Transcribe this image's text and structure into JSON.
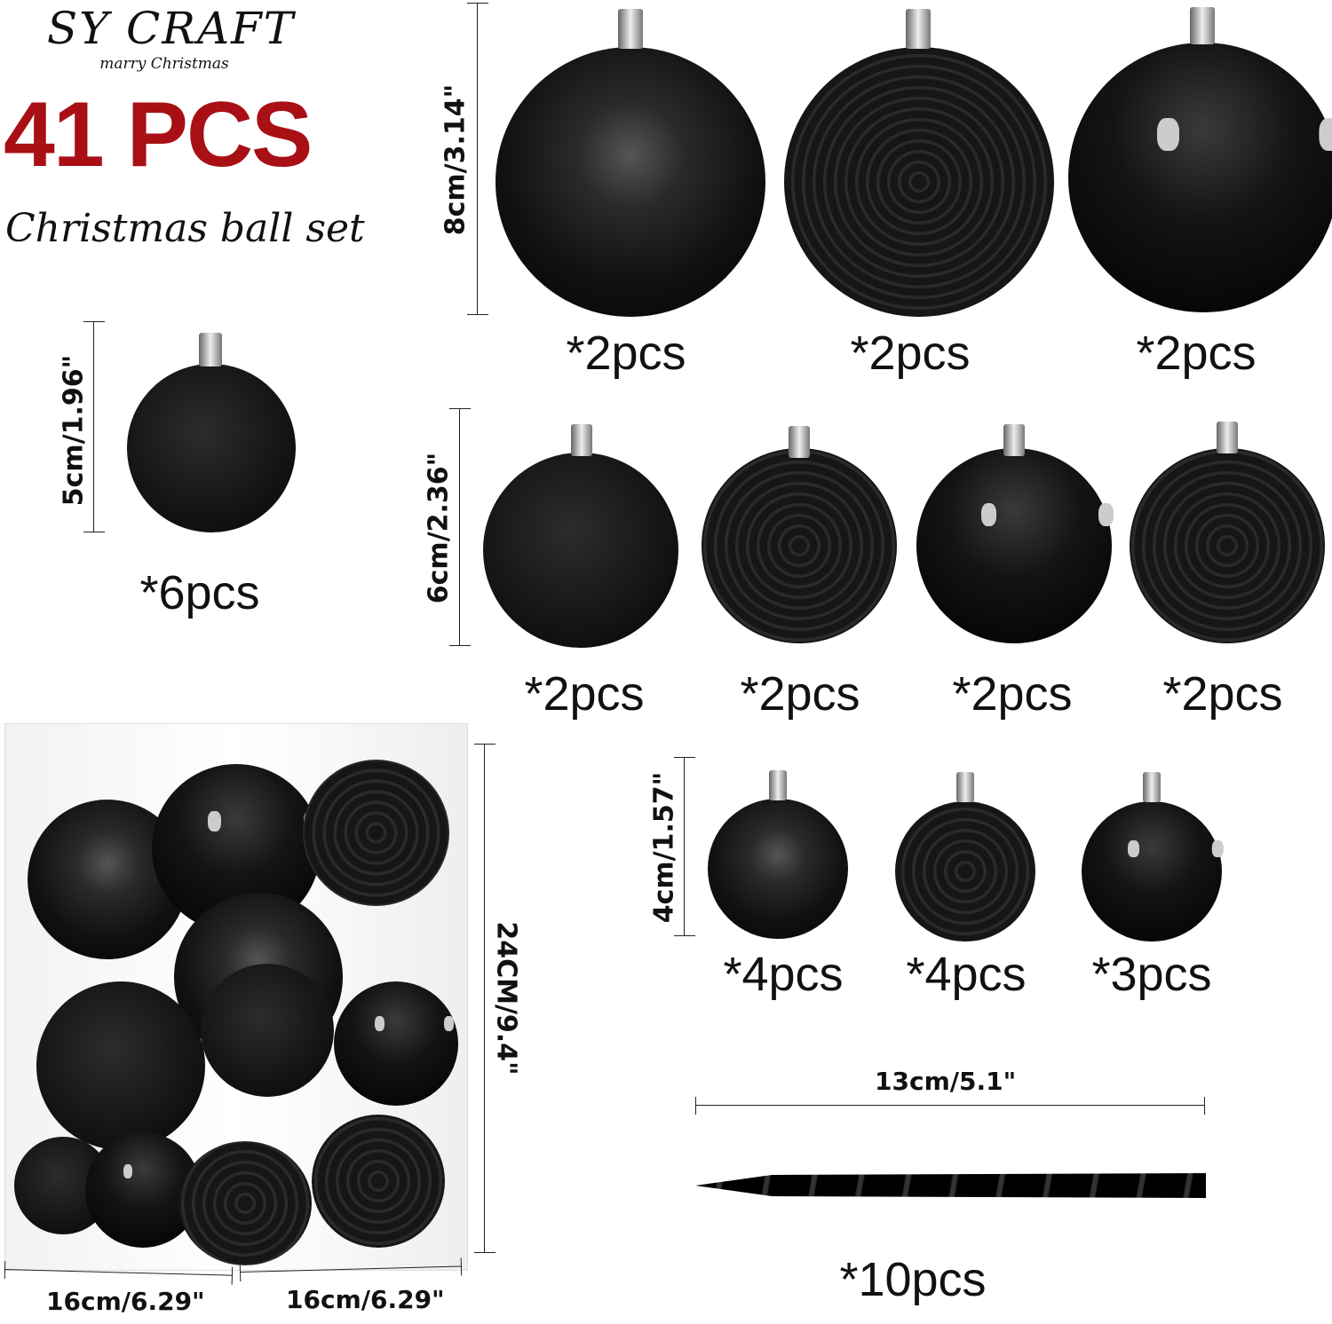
{
  "brand": {
    "name": "SY CRAFT",
    "tagline": "marry Christmas"
  },
  "headline": {
    "count": "41 PCS",
    "subtitle": "Christmas ball set"
  },
  "colors": {
    "accent": "#a81016",
    "ornament": "#0a0a0a"
  },
  "sizes": {
    "large": {
      "dimension": "8cm/3.14\"",
      "items": [
        {
          "finish": "glitter",
          "qty": "*2pcs"
        },
        {
          "finish": "embossed-sleigh",
          "qty": "*2pcs"
        },
        {
          "finish": "shiny",
          "qty": "*2pcs"
        }
      ]
    },
    "single": {
      "dimension": "5cm/1.96\"",
      "items": [
        {
          "finish": "matte",
          "qty": "*6pcs"
        }
      ]
    },
    "medium": {
      "dimension": "6cm/2.36\"",
      "items": [
        {
          "finish": "matte",
          "qty": "*2pcs"
        },
        {
          "finish": "embossed-floral",
          "qty": "*2pcs"
        },
        {
          "finish": "shiny",
          "qty": "*2pcs"
        },
        {
          "finish": "embossed-leaf",
          "qty": "*2pcs"
        }
      ]
    },
    "small": {
      "dimension": "4cm/1.57\"",
      "items": [
        {
          "finish": "glitter",
          "qty": "*4pcs"
        },
        {
          "finish": "embossed-tree",
          "qty": "*4pcs"
        },
        {
          "finish": "shiny",
          "qty": "*3pcs"
        }
      ]
    },
    "icicle": {
      "dimension": "13cm/5.1\"",
      "qty": "*10pcs"
    }
  },
  "package": {
    "height": "24CM/9.4\"",
    "width": "16cm/6.29\"",
    "depth": "16cm/6.29\""
  }
}
